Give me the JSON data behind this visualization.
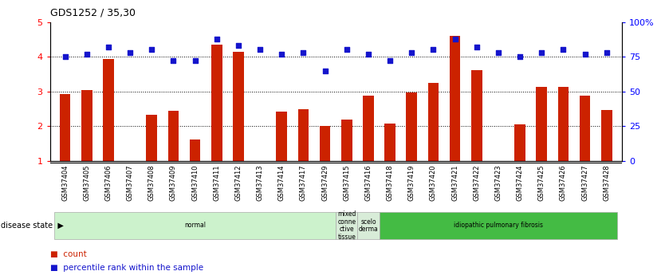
{
  "title": "GDS1252 / 35,30",
  "samples": [
    "GSM37404",
    "GSM37405",
    "GSM37406",
    "GSM37407",
    "GSM37408",
    "GSM37409",
    "GSM37410",
    "GSM37411",
    "GSM37412",
    "GSM37413",
    "GSM37414",
    "GSM37417",
    "GSM37429",
    "GSM37415",
    "GSM37416",
    "GSM37418",
    "GSM37419",
    "GSM37420",
    "GSM37421",
    "GSM37422",
    "GSM37423",
    "GSM37424",
    "GSM37425",
    "GSM37426",
    "GSM37427",
    "GSM37428"
  ],
  "count_values": [
    2.92,
    3.05,
    3.93,
    1.0,
    2.32,
    2.45,
    1.62,
    4.35,
    4.15,
    1.0,
    2.42,
    2.48,
    2.0,
    2.18,
    2.87,
    2.07,
    2.96,
    3.25,
    4.6,
    3.62,
    1.0,
    2.06,
    3.13,
    3.12,
    2.87,
    2.46
  ],
  "percentile_values": [
    75,
    77,
    82,
    78,
    80,
    72,
    72,
    88,
    83,
    80,
    77,
    78,
    65,
    80,
    77,
    72,
    78,
    80,
    88,
    82,
    78,
    75,
    78,
    80,
    77,
    78
  ],
  "bar_color": "#cc2200",
  "dot_color": "#1414cc",
  "ylim_left": [
    1,
    5
  ],
  "ylim_right": [
    0,
    100
  ],
  "yticks_left": [
    1,
    2,
    3,
    4,
    5
  ],
  "yticks_right": [
    0,
    25,
    50,
    75,
    100
  ],
  "disease_groups": [
    {
      "label": "normal",
      "start": 0,
      "end": 13,
      "color": "#ccf2cc",
      "text_color": "#000000"
    },
    {
      "label": "mixed\nconne\nctive\ntissue",
      "start": 13,
      "end": 14,
      "color": "#d8ecd8",
      "text_color": "#000000"
    },
    {
      "label": "scelo\nderma",
      "start": 14,
      "end": 15,
      "color": "#d8ecd8",
      "text_color": "#000000"
    },
    {
      "label": "idiopathic pulmonary fibrosis",
      "start": 15,
      "end": 26,
      "color": "#44bb44",
      "text_color": "#000000"
    }
  ],
  "grid_lines": [
    2,
    3,
    4
  ],
  "legend_count_label": "count",
  "legend_pct_label": "percentile rank within the sample",
  "disease_state_label": "disease state"
}
